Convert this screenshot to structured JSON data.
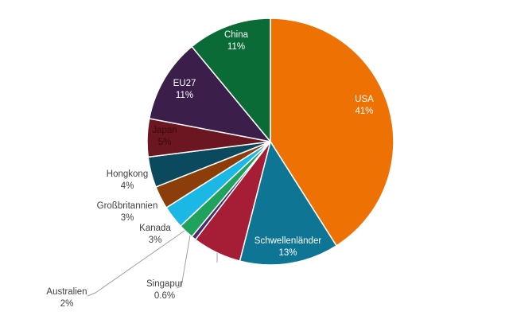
{
  "chart_data": {
    "type": "pie",
    "title": "",
    "start": "top",
    "direction": "clockwise",
    "slices": [
      {
        "label": "USA",
        "value": 41,
        "value_label": "41%",
        "color": "#EE7203",
        "label_color": "#ffffff"
      },
      {
        "label": "Schwellenländer",
        "value": 13,
        "value_label": "13%",
        "color": "#0E7595",
        "label_color": "#ffffff"
      },
      {
        "label": "",
        "value": 6.4,
        "value_label": "",
        "color": "#A51E36",
        "label_color": "#404040"
      },
      {
        "label": "Singapur",
        "value": 0.6,
        "value_label": "0.6%",
        "color": "#4B2A6B",
        "label_color": "#404040"
      },
      {
        "label": "Australien",
        "value": 2,
        "value_label": "2%",
        "color": "#1FA35C",
        "label_color": "#404040"
      },
      {
        "label": "Kanada",
        "value": 3,
        "value_label": "3%",
        "color": "#1BB8E5",
        "label_color": "#404040"
      },
      {
        "label": "Großbritannien",
        "value": 3,
        "value_label": "3%",
        "color": "#8B3E0A",
        "label_color": "#404040"
      },
      {
        "label": "Hongkong",
        "value": 4,
        "value_label": "4%",
        "color": "#0B4A5E",
        "label_color": "#404040"
      },
      {
        "label": "Japan",
        "value": 5,
        "value_label": "5%",
        "color": "#6B1620",
        "label_color": "#3a0a10"
      },
      {
        "label": "EU27",
        "value": 11,
        "value_label": "11%",
        "color": "#3B1E4A",
        "label_color": "#ffffff"
      },
      {
        "label": "China",
        "value": 11,
        "value_label": "11%",
        "color": "#0A6B36",
        "label_color": "#ffffff"
      }
    ]
  }
}
